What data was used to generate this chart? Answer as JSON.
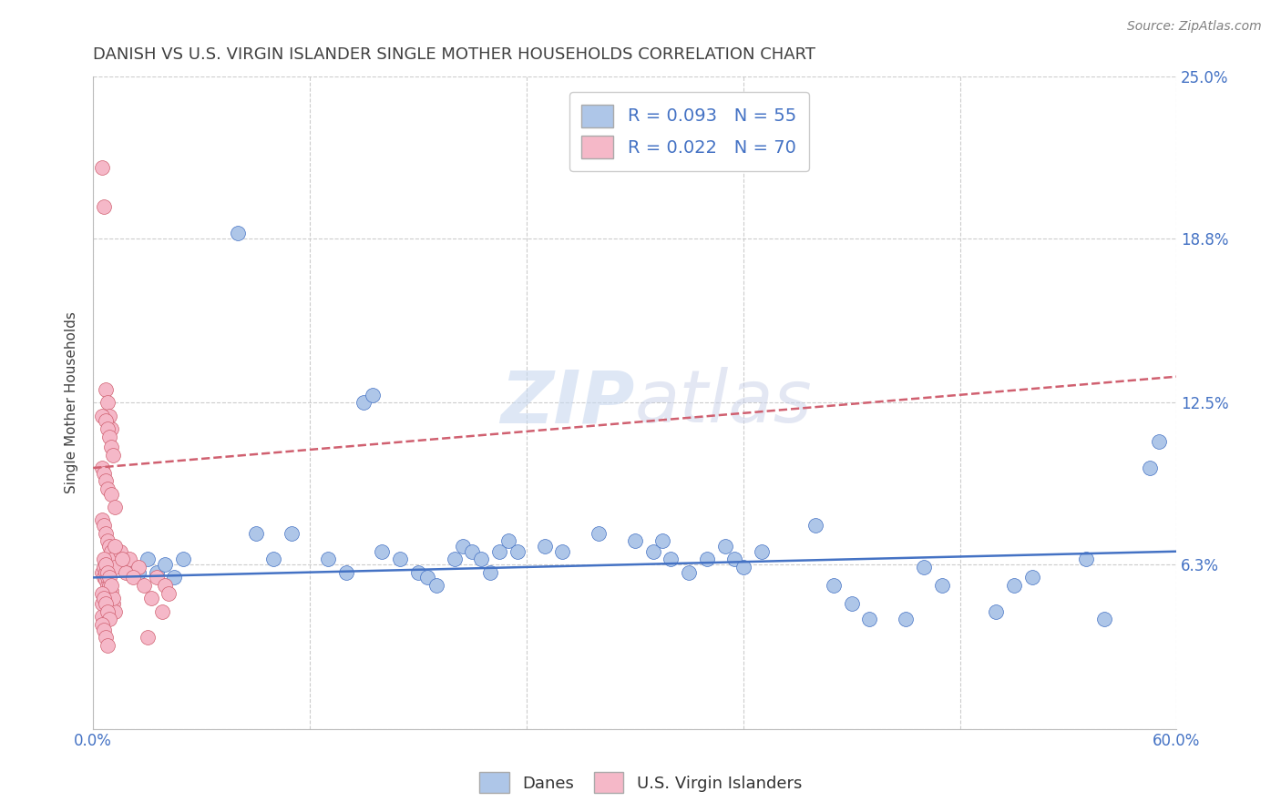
{
  "title": "DANISH VS U.S. VIRGIN ISLANDER SINGLE MOTHER HOUSEHOLDS CORRELATION CHART",
  "source": "Source: ZipAtlas.com",
  "ylabel": "Single Mother Households",
  "xlim": [
    0.0,
    0.6
  ],
  "ylim": [
    0.0,
    0.25
  ],
  "xtick_positions": [
    0.0,
    0.12,
    0.24,
    0.36,
    0.48,
    0.6
  ],
  "xticklabels": [
    "0.0%",
    "",
    "",
    "",
    "",
    "60.0%"
  ],
  "ytick_positions": [
    0.0,
    0.063,
    0.125,
    0.188,
    0.25
  ],
  "ytick_labels": [
    "",
    "6.3%",
    "12.5%",
    "18.8%",
    "25.0%"
  ],
  "color_blue": "#aec6e8",
  "color_pink": "#f5b8c8",
  "line_blue": "#4472c4",
  "line_pink": "#d06070",
  "text_blue": "#4472c4",
  "watermark": "ZIPatlas",
  "title_color": "#404040",
  "source_color": "#808080",
  "blue_line_x0": 0.0,
  "blue_line_y0": 0.058,
  "blue_line_x1": 0.6,
  "blue_line_y1": 0.068,
  "pink_line_x0": 0.0,
  "pink_line_y0": 0.1,
  "pink_line_x1": 0.6,
  "pink_line_y1": 0.135,
  "danes_x": [
    0.02,
    0.025,
    0.03,
    0.035,
    0.04,
    0.045,
    0.05,
    0.08,
    0.09,
    0.1,
    0.11,
    0.13,
    0.14,
    0.15,
    0.155,
    0.16,
    0.17,
    0.18,
    0.185,
    0.19,
    0.2,
    0.205,
    0.21,
    0.215,
    0.22,
    0.225,
    0.23,
    0.235,
    0.25,
    0.26,
    0.28,
    0.3,
    0.31,
    0.315,
    0.32,
    0.33,
    0.34,
    0.35,
    0.355,
    0.36,
    0.37,
    0.4,
    0.41,
    0.42,
    0.43,
    0.45,
    0.46,
    0.47,
    0.5,
    0.51,
    0.52,
    0.55,
    0.56,
    0.585,
    0.59
  ],
  "danes_y": [
    0.063,
    0.06,
    0.065,
    0.06,
    0.063,
    0.058,
    0.065,
    0.19,
    0.075,
    0.065,
    0.075,
    0.065,
    0.06,
    0.125,
    0.128,
    0.068,
    0.065,
    0.06,
    0.058,
    0.055,
    0.065,
    0.07,
    0.068,
    0.065,
    0.06,
    0.068,
    0.072,
    0.068,
    0.07,
    0.068,
    0.075,
    0.072,
    0.068,
    0.072,
    0.065,
    0.06,
    0.065,
    0.07,
    0.065,
    0.062,
    0.068,
    0.078,
    0.055,
    0.048,
    0.042,
    0.042,
    0.062,
    0.055,
    0.045,
    0.055,
    0.058,
    0.065,
    0.042,
    0.1,
    0.11
  ],
  "vi_x": [
    0.005,
    0.006,
    0.007,
    0.008,
    0.009,
    0.01,
    0.005,
    0.007,
    0.008,
    0.009,
    0.01,
    0.011,
    0.005,
    0.006,
    0.007,
    0.008,
    0.01,
    0.012,
    0.005,
    0.006,
    0.007,
    0.008,
    0.009,
    0.01,
    0.011,
    0.012,
    0.005,
    0.006,
    0.007,
    0.008,
    0.009,
    0.01,
    0.011,
    0.012,
    0.005,
    0.006,
    0.007,
    0.008,
    0.009,
    0.01,
    0.011,
    0.005,
    0.006,
    0.007,
    0.008,
    0.009,
    0.01,
    0.005,
    0.006,
    0.007,
    0.008,
    0.009,
    0.005,
    0.006,
    0.007,
    0.008,
    0.015,
    0.02,
    0.025,
    0.03,
    0.035,
    0.04,
    0.018,
    0.022,
    0.028,
    0.032,
    0.038,
    0.042,
    0.012,
    0.016
  ],
  "vi_y": [
    0.215,
    0.2,
    0.13,
    0.125,
    0.12,
    0.115,
    0.12,
    0.118,
    0.115,
    0.112,
    0.108,
    0.105,
    0.1,
    0.098,
    0.095,
    0.092,
    0.09,
    0.085,
    0.08,
    0.078,
    0.075,
    0.072,
    0.07,
    0.068,
    0.065,
    0.062,
    0.06,
    0.058,
    0.057,
    0.055,
    0.052,
    0.05,
    0.048,
    0.045,
    0.043,
    0.062,
    0.06,
    0.058,
    0.055,
    0.053,
    0.05,
    0.048,
    0.065,
    0.063,
    0.06,
    0.058,
    0.055,
    0.052,
    0.05,
    0.048,
    0.045,
    0.042,
    0.04,
    0.038,
    0.035,
    0.032,
    0.068,
    0.065,
    0.062,
    0.035,
    0.058,
    0.055,
    0.06,
    0.058,
    0.055,
    0.05,
    0.045,
    0.052,
    0.07,
    0.065
  ]
}
